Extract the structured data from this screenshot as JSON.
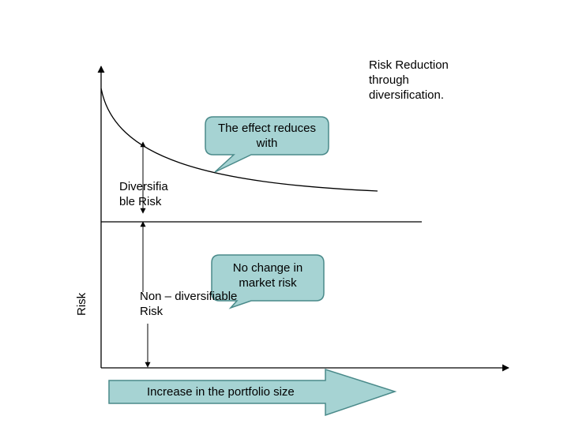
{
  "title": "Risk Reduction through diversification.",
  "y_axis_label": "Risk",
  "arrow_label": "Increase in the portfolio size",
  "diversifiable_label": "Diversifia ble Risk",
  "non_diversifiable_label": "Non – diversifiable Risk",
  "callout_top": "The effect reduces with",
  "callout_bottom": "No change in market risk",
  "colors": {
    "callout_fill": "#a6d3d3",
    "callout_stroke": "#4a8a8a",
    "arrow_fill": "#a6d3d3",
    "line": "#000000"
  }
}
